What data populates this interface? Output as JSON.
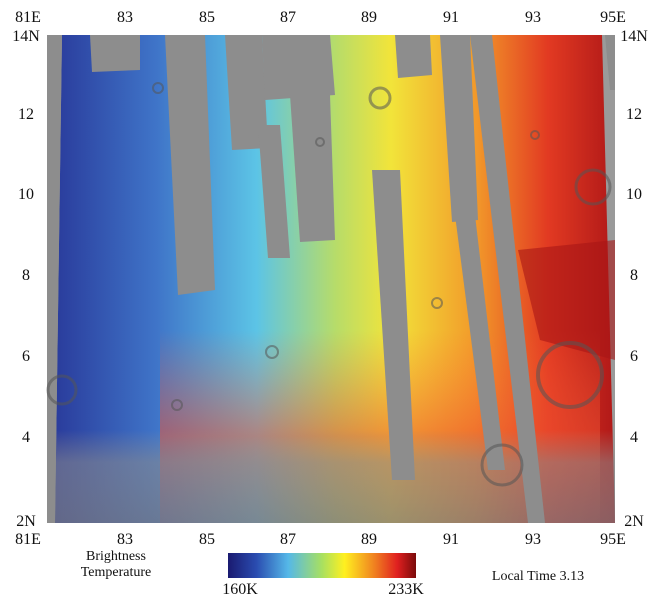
{
  "map": {
    "top_axis": [
      "81E",
      "83",
      "85",
      "87",
      "89",
      "91",
      "93",
      "95E"
    ],
    "bottom_axis": [
      "81E",
      "83",
      "85",
      "87",
      "89",
      "91",
      "93",
      "95E"
    ],
    "left_axis": [
      "14N",
      "12",
      "10",
      "8",
      "6",
      "4",
      "2N"
    ],
    "right_axis": [
      "14N",
      "12",
      "10",
      "8",
      "6",
      "4",
      "2N"
    ],
    "legend": {
      "title": "Brightness Temperature",
      "min_label": "160K",
      "max_label": "233K"
    },
    "note": "Local Time 3.13"
  }
}
